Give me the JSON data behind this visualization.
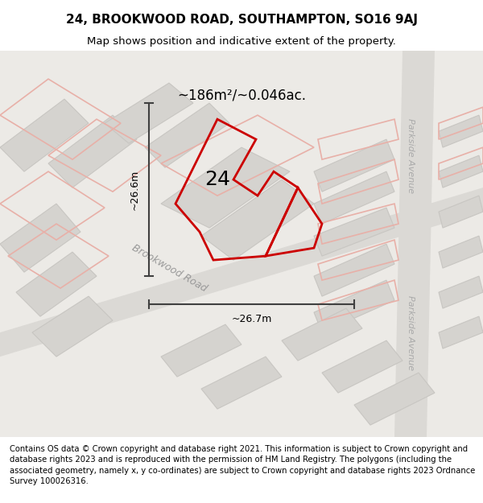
{
  "title": "24, BROOKWOOD ROAD, SOUTHAMPTON, SO16 9AJ",
  "subtitle": "Map shows position and indicative extent of the property.",
  "footer": "Contains OS data © Crown copyright and database right 2021. This information is subject to Crown copyright and database rights 2023 and is reproduced with the permission of HM Land Registry. The polygons (including the associated geometry, namely x, y co-ordinates) are subject to Crown copyright and database rights 2023 Ordnance Survey 100026316.",
  "area_text": "~186m²/~0.046ac.",
  "number_text": "24",
  "dim_h": "~26.6m",
  "dim_w": "~26.7m",
  "road_label1": "Brookwood Road",
  "road_label2a": "Parkside Avenue",
  "road_label2b": "Parkside Avenue",
  "title_fontsize": 11,
  "subtitle_fontsize": 9.5,
  "footer_fontsize": 7.2,
  "highlight_color": "#cc0000",
  "dim_color": "#404040",
  "block_color": "#d5d3cf",
  "block_edge": "#c8c6c2",
  "road_color": "#dbd9d5",
  "pink": "#e8b0a8",
  "map_bg": "#eceae6"
}
